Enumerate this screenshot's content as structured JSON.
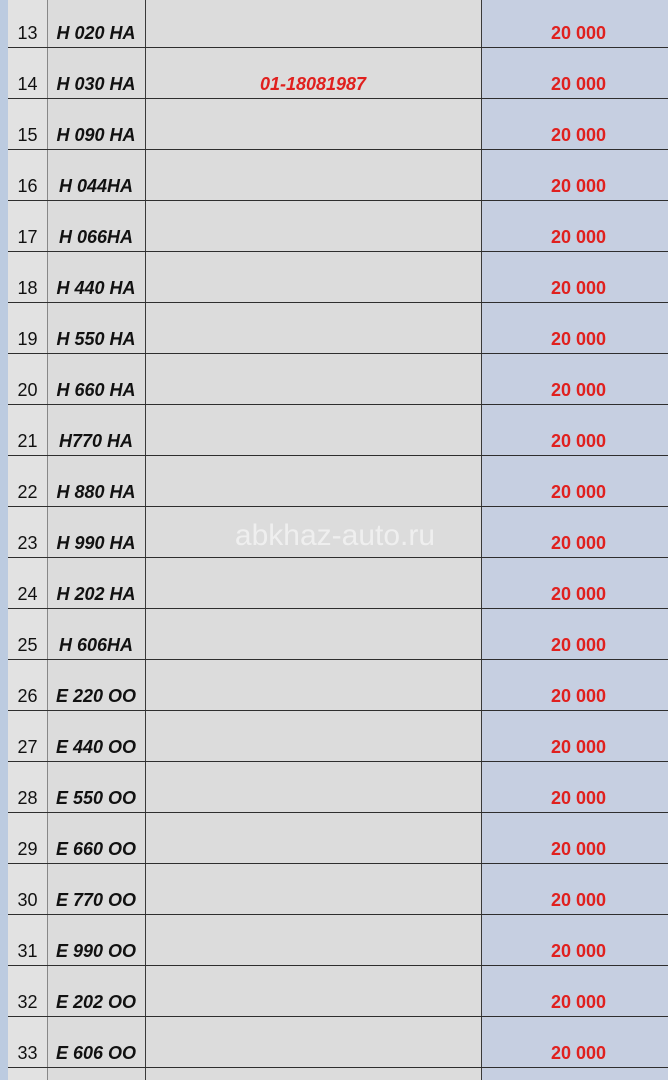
{
  "table": {
    "rows": [
      {
        "number": 13,
        "plate": "H 020 HA",
        "price": "20 000"
      },
      {
        "number": 14,
        "plate": "H 030 HA",
        "note": "01-18081987",
        "price": "20 000"
      },
      {
        "number": 15,
        "plate": "H 090 HA",
        "price": "20 000"
      },
      {
        "number": 16,
        "plate": "H 044HA",
        "price": "20 000"
      },
      {
        "number": 17,
        "plate": "H 066HA",
        "price": "20 000"
      },
      {
        "number": 18,
        "plate": "H 440 HA",
        "price": "20 000"
      },
      {
        "number": 19,
        "plate": "H 550 HA",
        "price": "20 000"
      },
      {
        "number": 20,
        "plate": "H 660 HA",
        "price": "20 000"
      },
      {
        "number": 21,
        "plate": "H770 HA",
        "price": "20 000"
      },
      {
        "number": 22,
        "plate": "H 880 HA",
        "price": "20 000"
      },
      {
        "number": 23,
        "plate": "H 990 HA",
        "price": "20 000"
      },
      {
        "number": 24,
        "plate": "H 202 HA",
        "price": "20 000"
      },
      {
        "number": 25,
        "plate": "H 606HA",
        "price": "20 000"
      },
      {
        "number": 26,
        "plate": "E 220 OO",
        "price": "20 000"
      },
      {
        "number": 27,
        "plate": "E 440 OO",
        "price": "20 000"
      },
      {
        "number": 28,
        "plate": "E 550 OO",
        "price": "20 000"
      },
      {
        "number": 29,
        "plate": "E 660 OO",
        "price": "20 000"
      },
      {
        "number": 30,
        "plate": "E 770 OO",
        "price": "20 000"
      },
      {
        "number": 31,
        "plate": "E 990 OO",
        "price": "20 000"
      },
      {
        "number": 32,
        "plate": "E 202 OO",
        "price": "20 000"
      },
      {
        "number": 33,
        "plate": "E 606 OO",
        "price": "20 000"
      }
    ]
  },
  "watermark": "abkhaz-auto.ru"
}
